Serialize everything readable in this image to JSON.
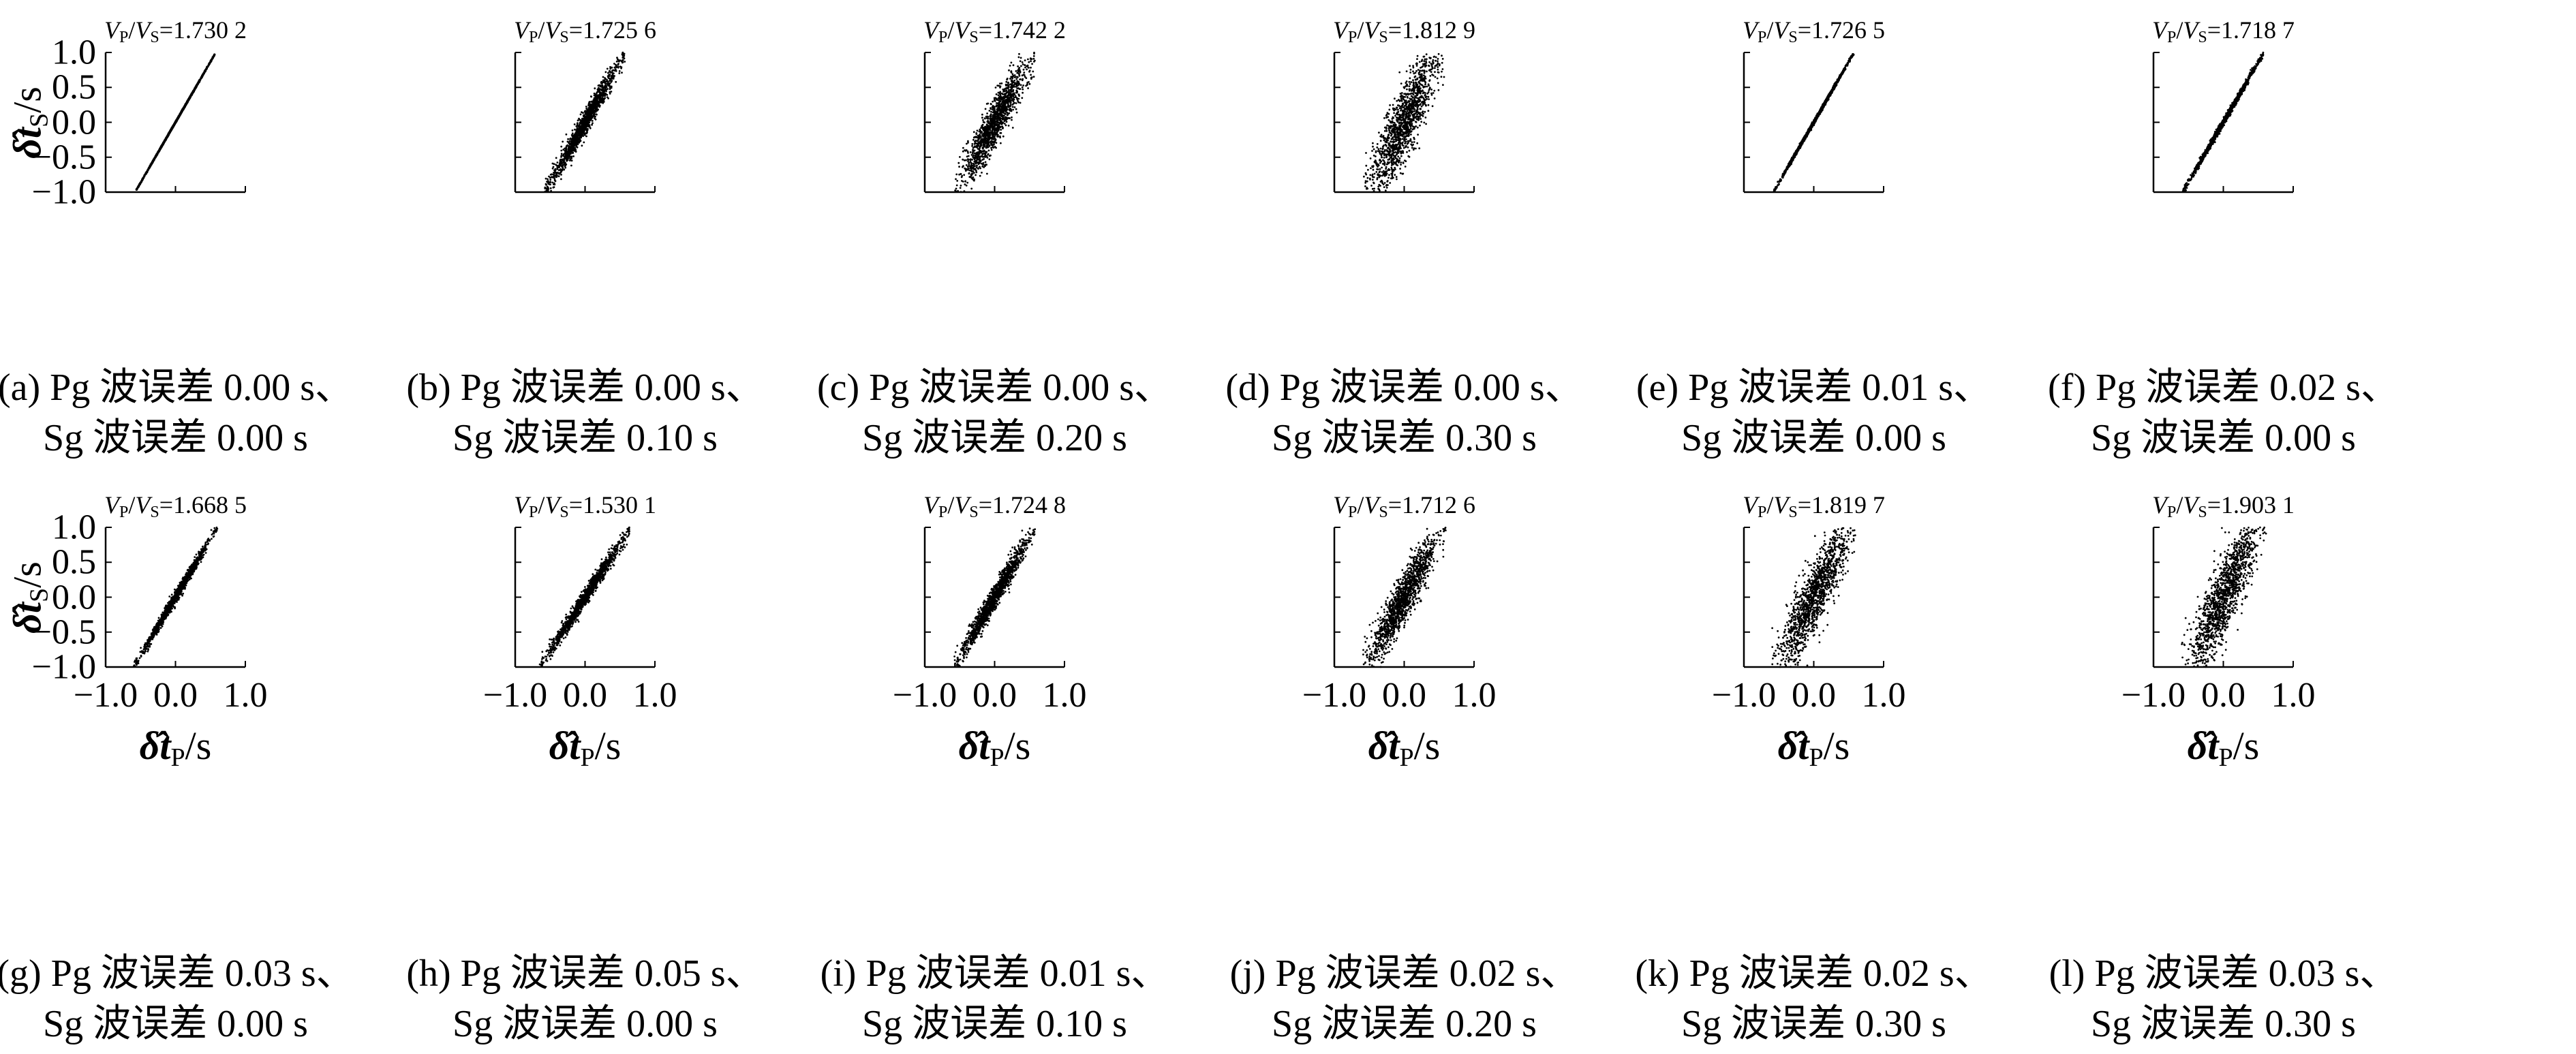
{
  "chart_data": [
    {
      "type": "scatter",
      "panel": "a",
      "ratio": "1.730 2",
      "caption_line1": "(a) Pg 波误差 0.00 s、",
      "caption_line2": "Sg 波误差 0.00 s",
      "pg_error_s": 0.0,
      "sg_error_s": 0.0,
      "vp_vs": 1.7302,
      "xlim": [
        -1.0,
        1.0
      ],
      "ylim": [
        -1.0,
        1.0
      ],
      "x_range": [
        -0.56,
        0.56
      ],
      "band_halfwidth_y": 0.008
    },
    {
      "type": "scatter",
      "panel": "b",
      "ratio": "1.725 6",
      "caption_line1": "(b) Pg 波误差 0.00 s、",
      "caption_line2": "Sg 波误差 0.10 s",
      "pg_error_s": 0.0,
      "sg_error_s": 0.1,
      "vp_vs": 1.7256,
      "xlim": [
        -1.0,
        1.0
      ],
      "ylim": [
        -1.0,
        1.0
      ],
      "x_range": [
        -0.58,
        0.58
      ],
      "band_halfwidth_y": 0.17
    },
    {
      "type": "scatter",
      "panel": "c",
      "ratio": "1.742 2",
      "caption_line1": "(c) Pg 波误差 0.00 s、",
      "caption_line2": "Sg 波误差 0.20 s",
      "pg_error_s": 0.0,
      "sg_error_s": 0.2,
      "vp_vs": 1.7422,
      "xlim": [
        -1.0,
        1.0
      ],
      "ylim": [
        -1.0,
        1.0
      ],
      "x_range": [
        -0.58,
        0.58
      ],
      "band_halfwidth_y": 0.34
    },
    {
      "type": "scatter",
      "panel": "d",
      "ratio": "1.812 9",
      "caption_line1": "(d) Pg 波误差 0.00 s、",
      "caption_line2": "Sg 波误差 0.30 s",
      "pg_error_s": 0.0,
      "sg_error_s": 0.3,
      "vp_vs": 1.8129,
      "xlim": [
        -1.0,
        1.0
      ],
      "ylim": [
        -1.0,
        1.0
      ],
      "x_range": [
        -0.58,
        0.58
      ],
      "band_halfwidth_y": 0.52
    },
    {
      "type": "scatter",
      "panel": "e",
      "ratio": "1.726 5",
      "caption_line1": "(e) Pg 波误差 0.01 s、",
      "caption_line2": "Sg 波误差 0.00 s",
      "pg_error_s": 0.01,
      "sg_error_s": 0.0,
      "vp_vs": 1.7265,
      "xlim": [
        -1.0,
        1.0
      ],
      "ylim": [
        -1.0,
        1.0
      ],
      "x_range": [
        -0.57,
        0.57
      ],
      "band_halfwidth_y": 0.025
    },
    {
      "type": "scatter",
      "panel": "f",
      "ratio": "1.718 7",
      "caption_line1": "(f) Pg 波误差 0.02 s、",
      "caption_line2": "Sg 波误差 0.00 s",
      "pg_error_s": 0.02,
      "sg_error_s": 0.0,
      "vp_vs": 1.7187,
      "xlim": [
        -1.0,
        1.0
      ],
      "ylim": [
        -1.0,
        1.0
      ],
      "x_range": [
        -0.58,
        0.58
      ],
      "band_halfwidth_y": 0.05
    },
    {
      "type": "scatter",
      "panel": "g",
      "ratio": "1.668 5",
      "caption_line1": "(g) Pg 波误差 0.03 s、",
      "caption_line2": "Sg 波误差 0.00 s",
      "pg_error_s": 0.03,
      "sg_error_s": 0.0,
      "vp_vs": 1.6685,
      "xlim": [
        -1.0,
        1.0
      ],
      "ylim": [
        -1.0,
        1.0
      ],
      "x_range": [
        -0.6,
        0.6
      ],
      "band_halfwidth_y": 0.08
    },
    {
      "type": "scatter",
      "panel": "h",
      "ratio": "1.530 1",
      "caption_line1": "(h) Pg 波误差 0.05 s、",
      "caption_line2": "Sg 波误差 0.00 s",
      "pg_error_s": 0.05,
      "sg_error_s": 0.0,
      "vp_vs": 1.5301,
      "xlim": [
        -1.0,
        1.0
      ],
      "ylim": [
        -1.0,
        1.0
      ],
      "x_range": [
        -0.65,
        0.65
      ],
      "band_halfwidth_y": 0.12
    },
    {
      "type": "scatter",
      "panel": "i",
      "ratio": "1.724 8",
      "caption_line1": "(i) Pg 波误差 0.01 s、",
      "caption_line2": "Sg 波误差 0.10 s",
      "pg_error_s": 0.01,
      "sg_error_s": 0.1,
      "vp_vs": 1.7248,
      "xlim": [
        -1.0,
        1.0
      ],
      "ylim": [
        -1.0,
        1.0
      ],
      "x_range": [
        -0.58,
        0.58
      ],
      "band_halfwidth_y": 0.17
    },
    {
      "type": "scatter",
      "panel": "j",
      "ratio": "1.712 6",
      "caption_line1": "(j) Pg 波误差 0.02 s、",
      "caption_line2": "Sg 波误差 0.20 s",
      "pg_error_s": 0.02,
      "sg_error_s": 0.2,
      "vp_vs": 1.7126,
      "xlim": [
        -1.0,
        1.0
      ],
      "ylim": [
        -1.0,
        1.0
      ],
      "x_range": [
        -0.6,
        0.6
      ],
      "band_halfwidth_y": 0.34
    },
    {
      "type": "scatter",
      "panel": "k",
      "ratio": "1.819 7",
      "caption_line1": "(k) Pg 波误差 0.02 s、",
      "caption_line2": "Sg 波误差 0.30 s",
      "pg_error_s": 0.02,
      "sg_error_s": 0.3,
      "vp_vs": 1.8197,
      "xlim": [
        -1.0,
        1.0
      ],
      "ylim": [
        -1.0,
        1.0
      ],
      "x_range": [
        -0.6,
        0.6
      ],
      "band_halfwidth_y": 0.5
    },
    {
      "type": "scatter",
      "panel": "l",
      "ratio": "1.903 1",
      "caption_line1": "(l) Pg 波误差 0.03 s、",
      "caption_line2": "Sg 波误差 0.30 s",
      "pg_error_s": 0.03,
      "sg_error_s": 0.3,
      "vp_vs": 1.9031,
      "xlim": [
        -1.0,
        1.0
      ],
      "ylim": [
        -1.0,
        1.0
      ],
      "x_range": [
        -0.62,
        0.62
      ],
      "band_halfwidth_y": 0.55
    }
  ],
  "panel_title_prefix": "V",
  "panel_title_sub_p": "P",
  "panel_title_sep": "/",
  "panel_title_sub_s": "S",
  "panel_title_eq": "=",
  "ytick_labels": [
    "1.0",
    "0.5",
    "0.0",
    "−0.5",
    "−1.0"
  ],
  "xtick_labels": [
    "−1.0",
    "0.0",
    "1.0"
  ],
  "ylabel_hat": "δ̂",
  "ylabel_var": "t",
  "ylabel_sub": "S",
  "ylabel_unit": "/s",
  "xlabel_hat": "δ̂",
  "xlabel_var": "t",
  "xlabel_sub": "P",
  "xlabel_unit": "/s",
  "point_color": "#000000"
}
